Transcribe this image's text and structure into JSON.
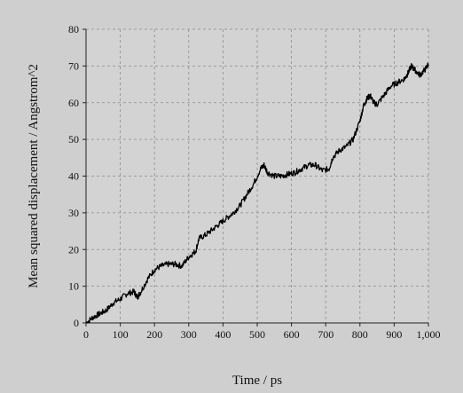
{
  "chart_data": {
    "type": "line",
    "xlabel": "Time / ps",
    "ylabel": "Mean squared displacement / Angstrom^2",
    "xlim": [
      0,
      1000
    ],
    "ylim": [
      0,
      80
    ],
    "x_ticks": [
      0,
      100,
      200,
      300,
      400,
      500,
      600,
      700,
      800,
      900,
      1000
    ],
    "x_tick_labels": [
      "0",
      "100",
      "200",
      "300",
      "400",
      "500",
      "600",
      "700",
      "800",
      "900",
      "1,000"
    ],
    "y_ticks": [
      0,
      10,
      20,
      30,
      40,
      50,
      60,
      70,
      80
    ],
    "y_tick_labels": [
      "0",
      "10",
      "20",
      "30",
      "40",
      "50",
      "60",
      "70",
      "80"
    ],
    "grid": true,
    "colors": {
      "background": "#cfcfcf",
      "plot_background": "#d3d3d3",
      "grid": "#8c8c8c",
      "line": "#000000"
    },
    "series": [
      {
        "color": "#000000",
        "points": [
          [
            0,
            0
          ],
          [
            20,
            1.5
          ],
          [
            40,
            2.5
          ],
          [
            60,
            3.5
          ],
          [
            80,
            5.5
          ],
          [
            100,
            6.5
          ],
          [
            120,
            8
          ],
          [
            140,
            8.5
          ],
          [
            150,
            7
          ],
          [
            160,
            8.5
          ],
          [
            180,
            12
          ],
          [
            200,
            14.5
          ],
          [
            220,
            15.5
          ],
          [
            240,
            16
          ],
          [
            260,
            16
          ],
          [
            280,
            15.5
          ],
          [
            300,
            18
          ],
          [
            320,
            19.5
          ],
          [
            330,
            23
          ],
          [
            350,
            24
          ],
          [
            370,
            25.5
          ],
          [
            390,
            27
          ],
          [
            410,
            28.5
          ],
          [
            430,
            30
          ],
          [
            450,
            32
          ],
          [
            470,
            35
          ],
          [
            490,
            38
          ],
          [
            510,
            42
          ],
          [
            520,
            43
          ],
          [
            530,
            41
          ],
          [
            550,
            40
          ],
          [
            570,
            40
          ],
          [
            590,
            40.5
          ],
          [
            610,
            41
          ],
          [
            630,
            42
          ],
          [
            650,
            43
          ],
          [
            670,
            43
          ],
          [
            690,
            41.5
          ],
          [
            710,
            42
          ],
          [
            720,
            45
          ],
          [
            740,
            47
          ],
          [
            760,
            48
          ],
          [
            780,
            50
          ],
          [
            800,
            55
          ],
          [
            810,
            59
          ],
          [
            820,
            61
          ],
          [
            830,
            62
          ],
          [
            840,
            60
          ],
          [
            850,
            59.5
          ],
          [
            870,
            62
          ],
          [
            890,
            64.5
          ],
          [
            910,
            65.5
          ],
          [
            930,
            66.5
          ],
          [
            940,
            68
          ],
          [
            950,
            70
          ],
          [
            960,
            69
          ],
          [
            975,
            67.5
          ],
          [
            990,
            69
          ],
          [
            1000,
            70.5
          ]
        ]
      }
    ]
  }
}
